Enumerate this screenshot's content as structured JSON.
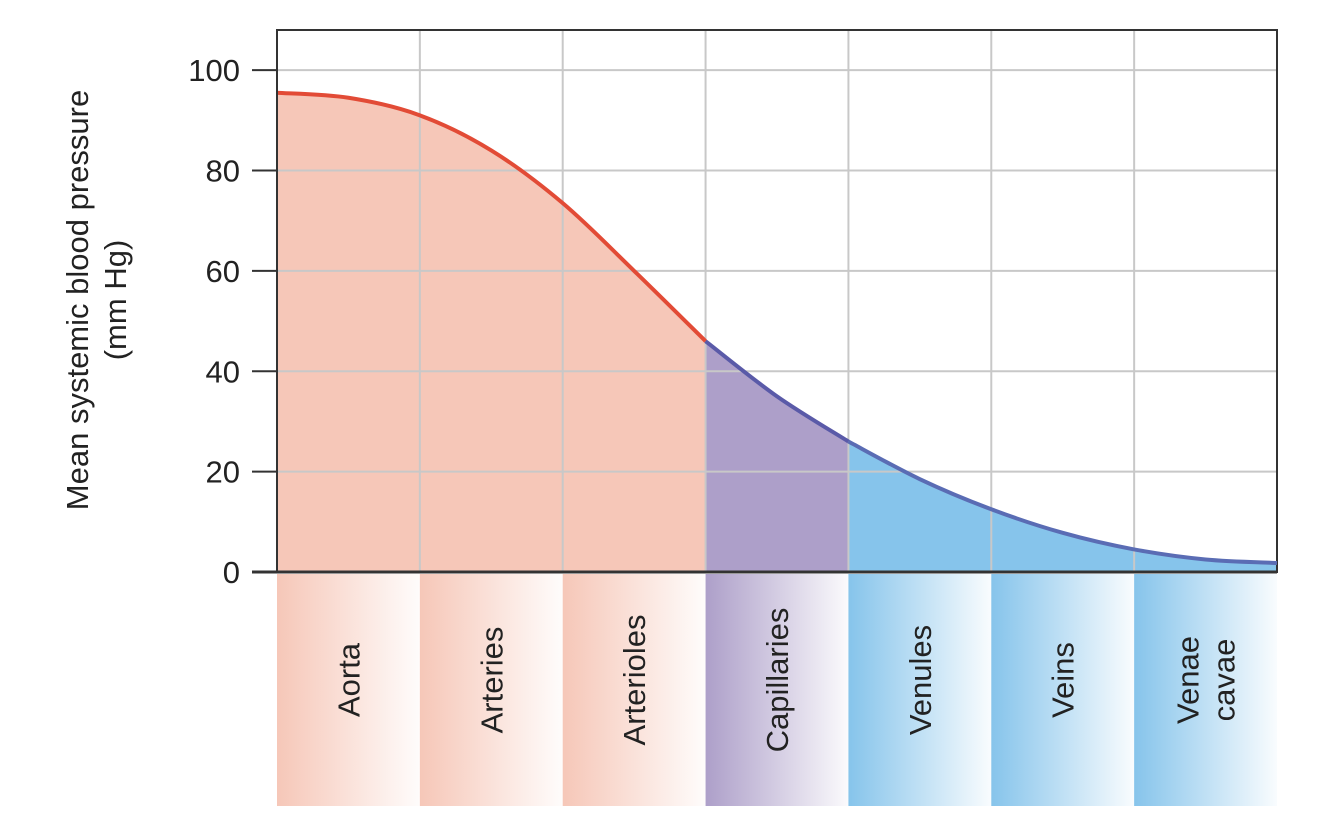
{
  "chart_data": {
    "type": "area",
    "ylabel_lines": [
      "Mean systemic blood pressure",
      "(mm Hg)"
    ],
    "y_ticks": [
      0,
      20,
      40,
      60,
      80,
      100
    ],
    "ylim": [
      0,
      108
    ],
    "grid": true,
    "categories": [
      {
        "lines": [
          "Aorta"
        ],
        "group": "arterial"
      },
      {
        "lines": [
          "Arteries"
        ],
        "group": "arterial"
      },
      {
        "lines": [
          "Arterioles"
        ],
        "group": "arterial"
      },
      {
        "lines": [
          "Capillaries"
        ],
        "group": "capillary"
      },
      {
        "lines": [
          "Venules"
        ],
        "group": "venous"
      },
      {
        "lines": [
          "Veins"
        ],
        "group": "venous"
      },
      {
        "lines": [
          "Venae",
          "cavae"
        ],
        "group": "venous"
      }
    ],
    "x": [
      0,
      0.5,
      1,
      1.5,
      2,
      2.5,
      3,
      3.5,
      4,
      4.5,
      5,
      5.5,
      6,
      6.5,
      7
    ],
    "pressure": [
      95.5,
      94.5,
      91,
      84,
      73.5,
      60,
      46,
      35,
      26,
      18.5,
      12.5,
      7.8,
      4.5,
      2.5,
      1.8
    ],
    "colors": {
      "arterial_line": "#e24b36",
      "arterial_fill": "#f6c7b8",
      "capillary_line": "#5a5aa8",
      "capillary_fill": "#ad9fc9",
      "venous_line": "#5a6cb4",
      "venous_fill": "#86c4eb",
      "grid": "#c8c8c8",
      "axis": "#333333"
    }
  }
}
